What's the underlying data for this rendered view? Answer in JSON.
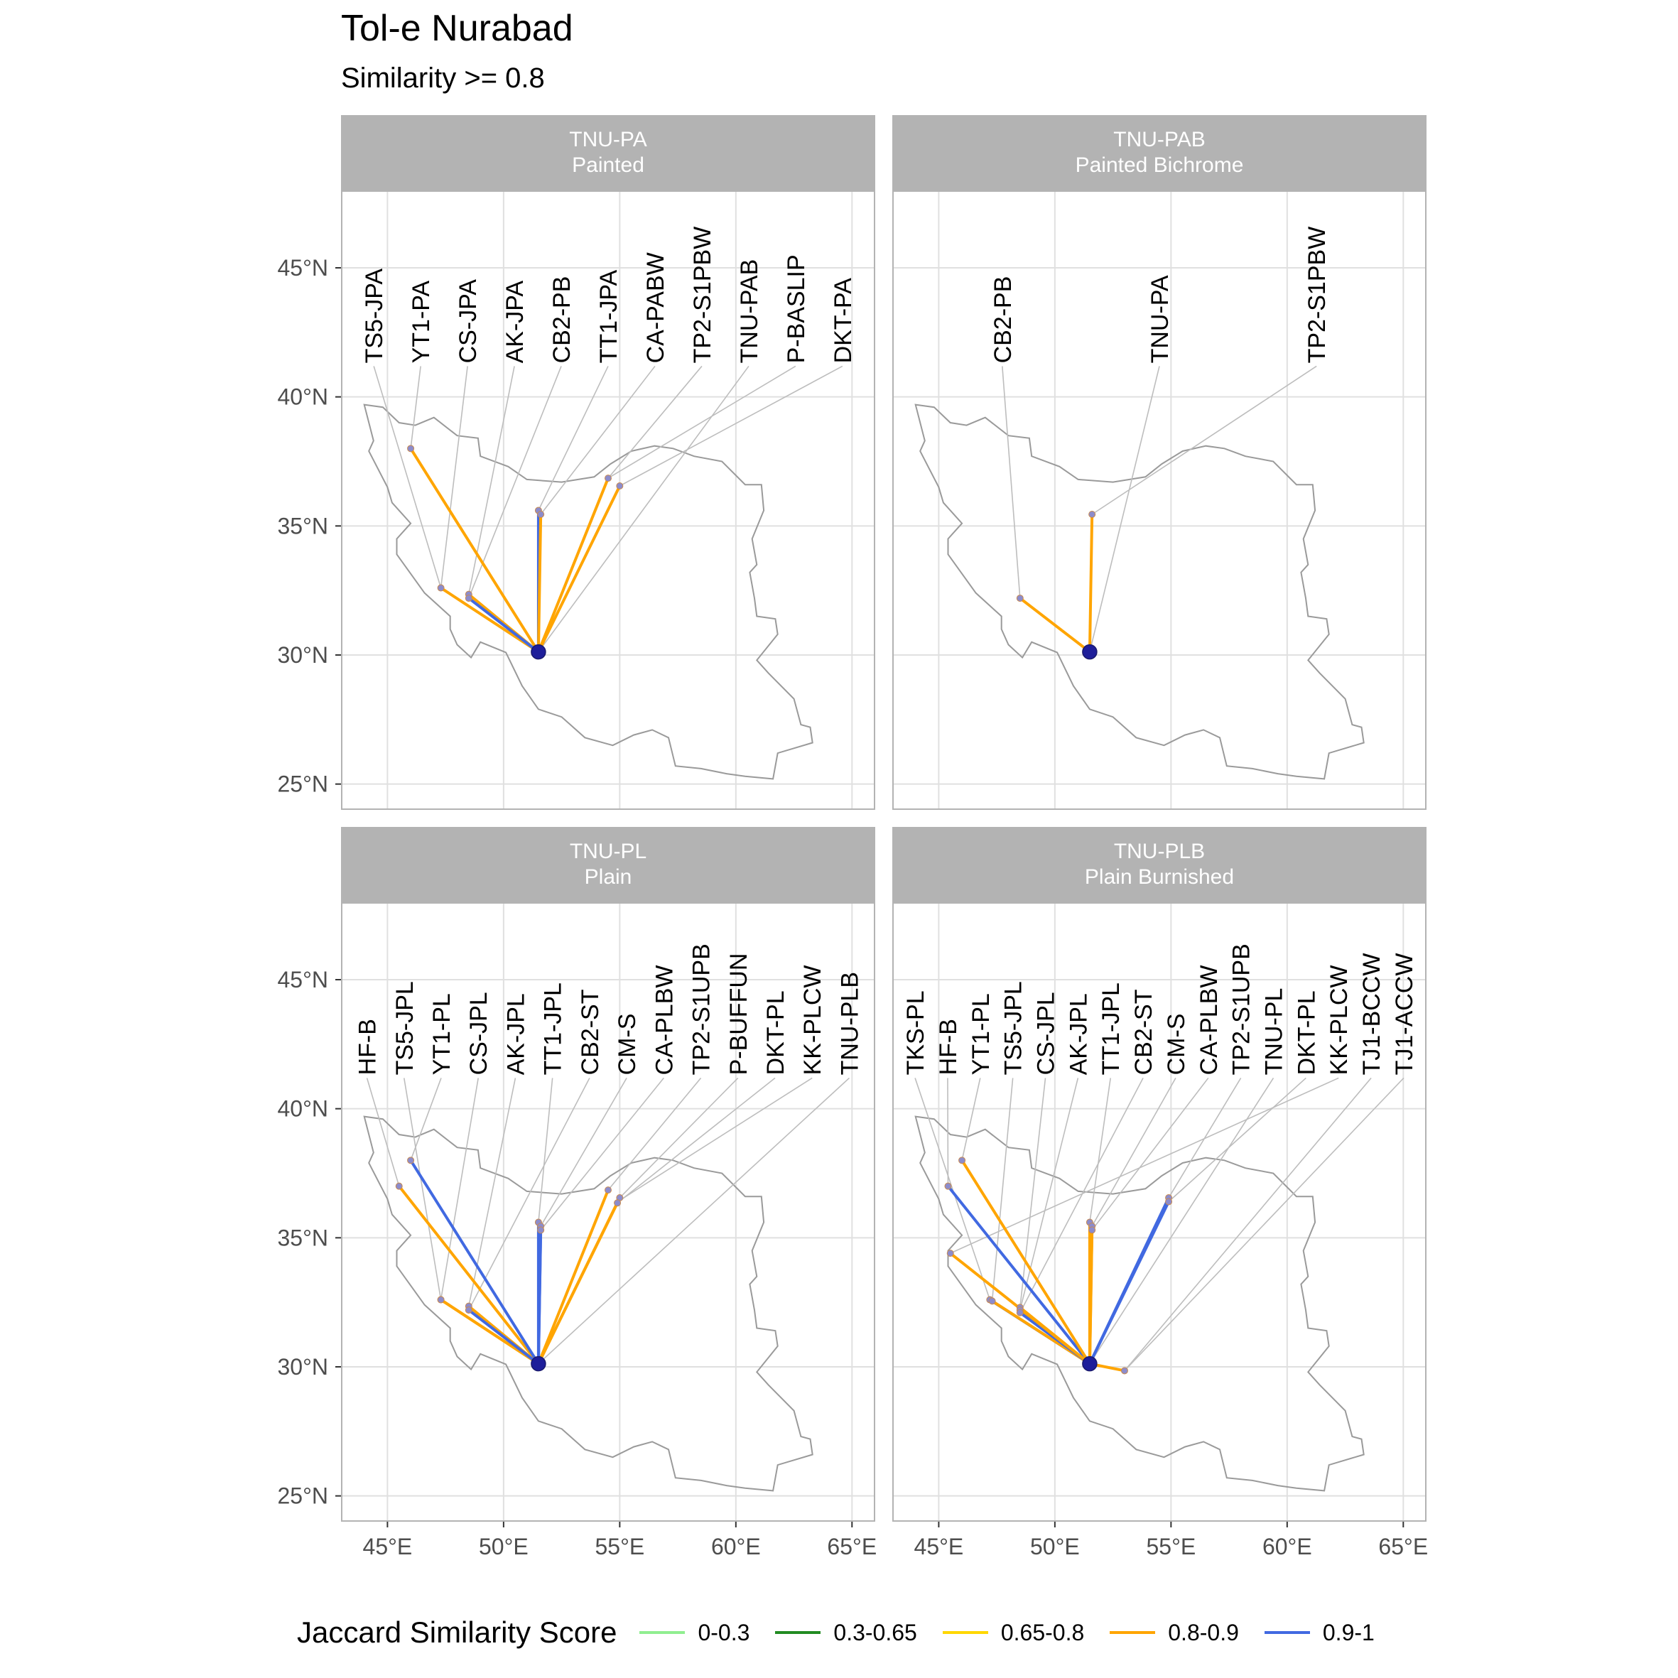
{
  "title": "Tol-e Nurabad",
  "subtitle": "Similarity >= 0.8",
  "legend": {
    "title": "Jaccard Similarity Score",
    "items": [
      {
        "label": "0-0.3",
        "color": "#90EE90"
      },
      {
        "label": "0.3-0.65",
        "color": "#228B22"
      },
      {
        "label": "0.65-0.8",
        "color": "#FFD700"
      },
      {
        "label": "0.8-0.9",
        "color": "#FFA500"
      },
      {
        "label": "0.9-1",
        "color": "#4169E1"
      }
    ]
  },
  "axes": {
    "x_ticks": [
      45,
      50,
      55,
      60,
      65
    ],
    "x_tick_labels": [
      "45°E",
      "50°E",
      "55°E",
      "60°E",
      "65°E"
    ],
    "y_ticks": [
      25,
      30,
      35,
      40,
      45
    ],
    "y_tick_labels": [
      "25°N",
      "30°N",
      "35°N",
      "40°N",
      "45°N"
    ],
    "xlim": [
      43.0,
      66.0
    ],
    "ylim": [
      24.0,
      48.0
    ],
    "grid": true
  },
  "origin": {
    "lon": 51.5,
    "lat": 30.12
  },
  "boundary": [
    [
      44.0,
      39.7
    ],
    [
      44.8,
      39.6
    ],
    [
      45.5,
      39.0
    ],
    [
      46.2,
      38.9
    ],
    [
      47.0,
      39.2
    ],
    [
      48.0,
      38.5
    ],
    [
      48.9,
      38.4
    ],
    [
      49.0,
      37.7
    ],
    [
      50.2,
      37.3
    ],
    [
      51.0,
      36.8
    ],
    [
      52.5,
      36.7
    ],
    [
      53.9,
      36.9
    ],
    [
      54.6,
      37.4
    ],
    [
      55.5,
      37.9
    ],
    [
      56.5,
      38.1
    ],
    [
      57.3,
      38.0
    ],
    [
      58.2,
      37.7
    ],
    [
      59.4,
      37.5
    ],
    [
      60.4,
      36.6
    ],
    [
      61.1,
      36.6
    ],
    [
      61.2,
      35.6
    ],
    [
      60.7,
      34.5
    ],
    [
      60.9,
      33.5
    ],
    [
      60.6,
      33.2
    ],
    [
      60.8,
      32.2
    ],
    [
      60.9,
      31.5
    ],
    [
      61.7,
      31.4
    ],
    [
      61.8,
      30.8
    ],
    [
      60.9,
      29.8
    ],
    [
      61.4,
      29.3
    ],
    [
      62.5,
      28.3
    ],
    [
      62.8,
      27.3
    ],
    [
      63.2,
      27.2
    ],
    [
      63.3,
      26.6
    ],
    [
      61.8,
      26.2
    ],
    [
      61.6,
      25.2
    ],
    [
      60.4,
      25.3
    ],
    [
      59.6,
      25.4
    ],
    [
      58.5,
      25.6
    ],
    [
      57.4,
      25.7
    ],
    [
      57.1,
      26.8
    ],
    [
      56.4,
      27.1
    ],
    [
      55.6,
      26.9
    ],
    [
      54.7,
      26.5
    ],
    [
      53.5,
      26.8
    ],
    [
      52.5,
      27.6
    ],
    [
      51.5,
      27.9
    ],
    [
      50.8,
      28.8
    ],
    [
      50.1,
      30.1
    ],
    [
      49.0,
      30.5
    ],
    [
      48.6,
      29.9
    ],
    [
      48.0,
      30.4
    ],
    [
      47.7,
      31.0
    ],
    [
      47.7,
      31.5
    ],
    [
      46.6,
      32.4
    ],
    [
      45.4,
      33.9
    ],
    [
      45.4,
      34.5
    ],
    [
      46.0,
      35.1
    ],
    [
      45.2,
      35.9
    ],
    [
      45.0,
      36.5
    ],
    [
      44.2,
      37.9
    ],
    [
      44.4,
      38.3
    ],
    [
      44.0,
      39.7
    ]
  ],
  "panels": [
    {
      "code": "TNU-PA",
      "name": "Painted",
      "sites": [
        {
          "label": "TS5-JPA",
          "lon": 47.3,
          "lat": 32.6,
          "color": null
        },
        {
          "label": "YT1-PA",
          "lon": 46.0,
          "lat": 38.0,
          "color": "#FFA500"
        },
        {
          "label": "CS-JPA",
          "lon": 47.3,
          "lat": 32.6,
          "color": "#FFA500"
        },
        {
          "label": "AK-JPA",
          "lon": 48.5,
          "lat": 32.35,
          "color": "#FFA500"
        },
        {
          "label": "CB2-PB",
          "lon": 48.5,
          "lat": 32.2,
          "color": "#4169E1"
        },
        {
          "label": "TT1-JPA",
          "lon": 51.5,
          "lat": 35.6,
          "color": "#4169E1"
        },
        {
          "label": "CA-PABW",
          "lon": 51.6,
          "lat": 35.45,
          "color": "#FFA500"
        },
        {
          "label": "TP2-S1PBW",
          "lon": 54.5,
          "lat": 36.85,
          "color": "#FFA500"
        },
        {
          "label": "TNU-PAB",
          "lon": 51.5,
          "lat": 30.12,
          "color": null
        },
        {
          "label": "P-BASLIP",
          "lon": 54.5,
          "lat": 36.85,
          "color": null
        },
        {
          "label": "DKT-PA",
          "lon": 55.0,
          "lat": 36.55,
          "color": "#FFA500"
        }
      ]
    },
    {
      "code": "TNU-PAB",
      "name": "Painted Bichrome",
      "sites": [
        {
          "label": "CB2-PB",
          "lon": 48.5,
          "lat": 32.2,
          "color": "#FFA500"
        },
        {
          "label": "TNU-PA",
          "lon": 51.5,
          "lat": 30.12,
          "color": null
        },
        {
          "label": "TP2-S1PBW",
          "lon": 51.6,
          "lat": 35.45,
          "color": "#FFA500"
        }
      ]
    },
    {
      "code": "TNU-PL",
      "name": "Plain",
      "sites": [
        {
          "label": "HF-B",
          "lon": 45.5,
          "lat": 37.0,
          "color": "#FFA500"
        },
        {
          "label": "TS5-JPL",
          "lon": 47.3,
          "lat": 32.6,
          "color": "#FFA500"
        },
        {
          "label": "YT1-PL",
          "lon": 46.0,
          "lat": 38.0,
          "color": "#4169E1"
        },
        {
          "label": "CS-JPL",
          "lon": 47.3,
          "lat": 32.6,
          "color": "#FFA500"
        },
        {
          "label": "AK-JPL",
          "lon": 48.5,
          "lat": 32.35,
          "color": "#FFA500"
        },
        {
          "label": "TT1-JPL",
          "lon": 51.5,
          "lat": 35.6,
          "color": "#4169E1"
        },
        {
          "label": "CB2-ST",
          "lon": 48.5,
          "lat": 32.2,
          "color": "#4169E1"
        },
        {
          "label": "CM-S",
          "lon": 51.6,
          "lat": 35.45,
          "color": "#4169E1"
        },
        {
          "label": "CA-PLBW",
          "lon": 51.6,
          "lat": 35.3,
          "color": "#4169E1"
        },
        {
          "label": "TP2-S1UPB",
          "lon": 54.5,
          "lat": 36.85,
          "color": "#FFA500"
        },
        {
          "label": "P-BUFFUN",
          "lon": 55.0,
          "lat": 36.55,
          "color": "#FFA500"
        },
        {
          "label": "DKT-PL",
          "lon": 54.9,
          "lat": 36.35,
          "color": "#FFA500"
        },
        {
          "label": "KK-PLCW",
          "lon": 55.0,
          "lat": 36.45,
          "color": null
        },
        {
          "label": "TNU-PLB",
          "lon": 51.5,
          "lat": 30.12,
          "color": null
        }
      ]
    },
    {
      "code": "TNU-PLB",
      "name": "Plain Burnished",
      "sites": [
        {
          "label": "TKS-PL",
          "lon": 47.2,
          "lat": 32.6,
          "color": "#4169E1"
        },
        {
          "label": "HF-B",
          "lon": 45.4,
          "lat": 37.0,
          "color": "#4169E1"
        },
        {
          "label": "YT1-PL",
          "lon": 46.0,
          "lat": 38.0,
          "color": "#FFA500"
        },
        {
          "label": "TS5-JPL",
          "lon": 47.3,
          "lat": 32.55,
          "color": "#FFA500"
        },
        {
          "label": "CS-JPL",
          "lon": 48.5,
          "lat": 32.3,
          "color": "#FFA500"
        },
        {
          "label": "AK-JPL",
          "lon": 48.5,
          "lat": 32.2,
          "color": "#FFA500"
        },
        {
          "label": "TT1-JPL",
          "lon": 51.5,
          "lat": 35.6,
          "color": "#FFA500"
        },
        {
          "label": "CB2-ST",
          "lon": 48.5,
          "lat": 32.1,
          "color": "#4169E1"
        },
        {
          "label": "CM-S",
          "lon": 51.6,
          "lat": 35.45,
          "color": "#FFA500"
        },
        {
          "label": "CA-PLBW",
          "lon": 51.6,
          "lat": 35.3,
          "color": "#FFA500"
        },
        {
          "label": "TP2-S1UPB",
          "lon": 54.9,
          "lat": 36.55,
          "color": "#4169E1"
        },
        {
          "label": "TNU-PL",
          "lon": 51.5,
          "lat": 30.12,
          "color": null
        },
        {
          "label": "DKT-PL",
          "lon": 54.9,
          "lat": 36.4,
          "color": "#4169E1"
        },
        {
          "label": "KK-PLCW",
          "lon": 45.5,
          "lat": 34.4,
          "color": "#FFA500"
        },
        {
          "label": "TJ1-BCCW",
          "lon": 53.0,
          "lat": 29.85,
          "color": "#FFA500"
        },
        {
          "label": "TJ1-ACCW",
          "lon": 53.0,
          "lat": 29.85,
          "color": null
        }
      ]
    }
  ]
}
